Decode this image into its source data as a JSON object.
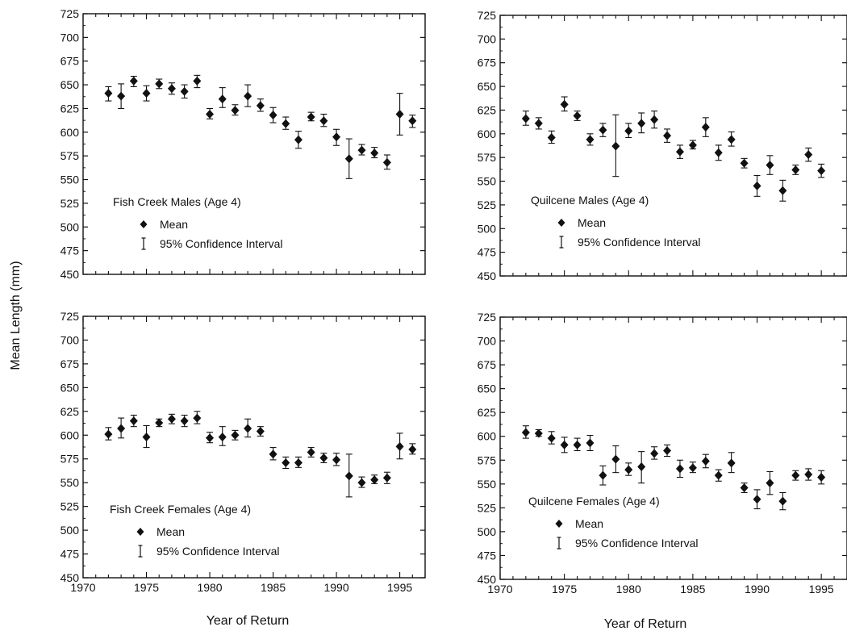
{
  "figure": {
    "ylabel": "Mean Length (mm)",
    "xlabel_bottom_left": "Year of Return",
    "xlabel_bottom_right": "Year of Return"
  },
  "legend_common": {
    "mean_label": "Mean",
    "ci_label": "95% Confidence Interval"
  },
  "chart_data": [
    {
      "type": "scatter",
      "panel": "top-left",
      "title": "Fish Creek Males (Age 4)",
      "xlim": [
        1970,
        1997
      ],
      "ylim": [
        450,
        725
      ],
      "x": [
        1972,
        1973,
        1974,
        1975,
        1976,
        1977,
        1978,
        1979,
        1980,
        1981,
        1982,
        1983,
        1984,
        1985,
        1986,
        1987,
        1988,
        1989,
        1990,
        1991,
        1992,
        1993,
        1994,
        1995,
        1996
      ],
      "y": [
        641,
        638,
        654,
        641,
        651,
        646,
        643,
        654,
        619,
        635,
        623,
        638,
        628,
        618,
        609,
        592,
        616,
        612,
        595,
        572,
        581,
        578,
        568,
        619,
        612
      ],
      "ci_low": [
        633,
        625,
        648,
        633,
        646,
        640,
        636,
        647,
        614,
        626,
        618,
        627,
        622,
        610,
        603,
        583,
        612,
        606,
        586,
        551,
        576,
        573,
        561,
        597,
        605
      ],
      "ci_high": [
        648,
        651,
        659,
        649,
        656,
        652,
        650,
        660,
        625,
        647,
        629,
        650,
        635,
        626,
        616,
        601,
        621,
        619,
        603,
        593,
        587,
        584,
        576,
        641,
        618
      ]
    },
    {
      "type": "scatter",
      "panel": "top-right",
      "title": "Quilcene Males (Age 4)",
      "xlim": [
        1970,
        1997
      ],
      "ylim": [
        450,
        725
      ],
      "x": [
        1972,
        1973,
        1974,
        1975,
        1976,
        1977,
        1978,
        1979,
        1980,
        1981,
        1982,
        1983,
        1984,
        1985,
        1986,
        1987,
        1988,
        1989,
        1990,
        1991,
        1992,
        1993,
        1994,
        1995
      ],
      "y": [
        616,
        611,
        596,
        631,
        619,
        594,
        604,
        587,
        603,
        611,
        615,
        598,
        581,
        588,
        607,
        580,
        594,
        569,
        545,
        567,
        540,
        562,
        578,
        561
      ],
      "ci_low": [
        609,
        605,
        590,
        624,
        614,
        588,
        597,
        555,
        596,
        601,
        606,
        591,
        574,
        584,
        597,
        572,
        587,
        564,
        534,
        557,
        529,
        557,
        571,
        554
      ],
      "ci_high": [
        624,
        617,
        603,
        639,
        624,
        600,
        611,
        620,
        611,
        622,
        624,
        605,
        588,
        593,
        617,
        588,
        602,
        574,
        556,
        577,
        551,
        567,
        585,
        568
      ]
    },
    {
      "type": "scatter",
      "panel": "bottom-left",
      "title": "Fish Creek Females (Age 4)",
      "xlim": [
        1970,
        1997
      ],
      "ylim": [
        450,
        725
      ],
      "x": [
        1972,
        1973,
        1974,
        1975,
        1976,
        1977,
        1978,
        1979,
        1980,
        1981,
        1982,
        1983,
        1984,
        1985,
        1986,
        1987,
        1988,
        1989,
        1990,
        1991,
        1992,
        1993,
        1994,
        1995,
        1996
      ],
      "y": [
        601,
        607,
        615,
        598,
        613,
        617,
        615,
        618,
        597,
        598,
        600,
        607,
        604,
        580,
        571,
        571,
        582,
        576,
        574,
        557,
        550,
        553,
        555,
        588,
        585
      ],
      "ci_low": [
        595,
        597,
        609,
        587,
        609,
        612,
        609,
        612,
        592,
        589,
        595,
        598,
        599,
        574,
        565,
        566,
        577,
        571,
        568,
        535,
        545,
        549,
        549,
        575,
        580
      ],
      "ci_high": [
        608,
        618,
        621,
        610,
        617,
        622,
        621,
        625,
        603,
        609,
        605,
        617,
        609,
        587,
        577,
        577,
        587,
        581,
        581,
        580,
        556,
        558,
        561,
        602,
        591
      ]
    },
    {
      "type": "scatter",
      "panel": "bottom-right",
      "title": "Quilcene Females (Age 4)",
      "xlim": [
        1970,
        1997
      ],
      "ylim": [
        450,
        725
      ],
      "x": [
        1972,
        1973,
        1974,
        1975,
        1976,
        1977,
        1978,
        1979,
        1980,
        1981,
        1982,
        1983,
        1984,
        1985,
        1986,
        1987,
        1988,
        1989,
        1990,
        1991,
        1992,
        1993,
        1994,
        1995
      ],
      "y": [
        604,
        603,
        598,
        591,
        591,
        593,
        559,
        576,
        565,
        568,
        582,
        585,
        566,
        567,
        574,
        559,
        572,
        546,
        534,
        551,
        532,
        559,
        560,
        557
      ],
      "ci_low": [
        598,
        600,
        592,
        583,
        585,
        585,
        549,
        562,
        559,
        551,
        576,
        579,
        557,
        562,
        567,
        553,
        562,
        541,
        524,
        539,
        523,
        554,
        554,
        550
      ],
      "ci_high": [
        611,
        607,
        605,
        599,
        598,
        601,
        569,
        590,
        572,
        584,
        589,
        591,
        575,
        573,
        581,
        565,
        583,
        551,
        544,
        563,
        541,
        564,
        566,
        564
      ]
    }
  ],
  "axes": {
    "y_ticks": [
      450,
      475,
      500,
      525,
      550,
      575,
      600,
      625,
      650,
      675,
      700,
      725
    ],
    "x_ticks": [
      1970,
      1975,
      1980,
      1985,
      1990,
      1995
    ]
  }
}
